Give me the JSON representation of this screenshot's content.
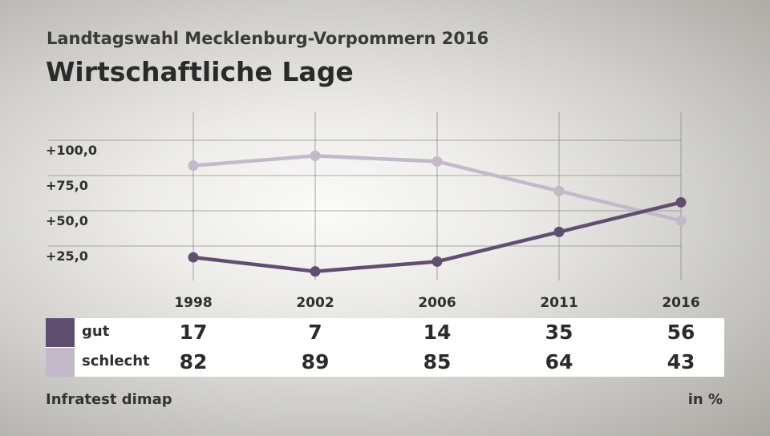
{
  "header": {
    "supertitle": "Landtagswahl Mecklenburg-Vorpommern 2016",
    "title": "Wirtschaftliche Lage"
  },
  "footer": {
    "source": "Infratest dimap",
    "unit": "in %"
  },
  "colors": {
    "gut": "#5f4e6e",
    "schlecht": "#c3b9c9",
    "grid": "#8f8f8b"
  },
  "chart_data": {
    "type": "line",
    "title": "Wirtschaftliche Lage",
    "x": [
      "1998",
      "2002",
      "2006",
      "2011",
      "2016"
    ],
    "yticks": [
      "+25,0",
      "+50,0",
      "+75,0",
      "+100,0"
    ],
    "ytick_values": [
      25,
      50,
      75,
      100
    ],
    "ylim": [
      0,
      120
    ],
    "grid": true,
    "series": [
      {
        "name": "gut",
        "values": [
          17,
          7,
          14,
          35,
          56
        ]
      },
      {
        "name": "schlecht",
        "values": [
          82,
          89,
          85,
          64,
          43
        ]
      }
    ]
  }
}
